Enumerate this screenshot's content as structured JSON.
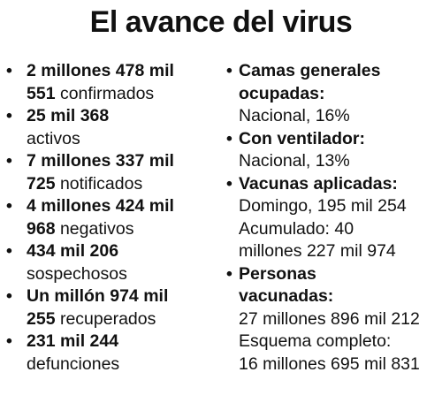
{
  "title": "El avance del virus",
  "bullet": "•",
  "left": {
    "items": [
      {
        "l1": "2 millones 478 mil",
        "l2b": "551",
        "l2": " confirmados"
      },
      {
        "l1": "25 mil 368",
        "l2b": "",
        "l2": "activos"
      },
      {
        "l1": "7 millones 337 mil",
        "l2b": "725",
        "l2": " notificados"
      },
      {
        "l1": "4 millones 424 mil",
        "l2b": "968",
        "l2": " negativos"
      },
      {
        "l1": "434 mil 206",
        "l2b": "",
        "l2": "sospechosos"
      },
      {
        "l1": "Un millón 974 mil",
        "l2b": "255",
        "l2": " recuperados"
      },
      {
        "l1": "231 mil 244",
        "l2b": "",
        "l2": "defunciones"
      }
    ]
  },
  "right": {
    "camas": {
      "h1": "Camas generales",
      "h2": "ocupadas:",
      "v1": "Nacional, 16%"
    },
    "ventilador": {
      "h1": "Con ventilador:",
      "v1": "Nacional, 13%"
    },
    "vacunas": {
      "h1": "Vacunas aplicadas:",
      "v1": "Domingo, 195 mil 254",
      "v2": "Acumulado: 40",
      "v3": "millones 227 mil 974"
    },
    "personas": {
      "h1": "Personas",
      "h2": "vacunadas:",
      "v1": "27 millones 896 mil 212",
      "v2": "Esquema completo:",
      "v3": "16 millones 695 mil 831"
    }
  }
}
